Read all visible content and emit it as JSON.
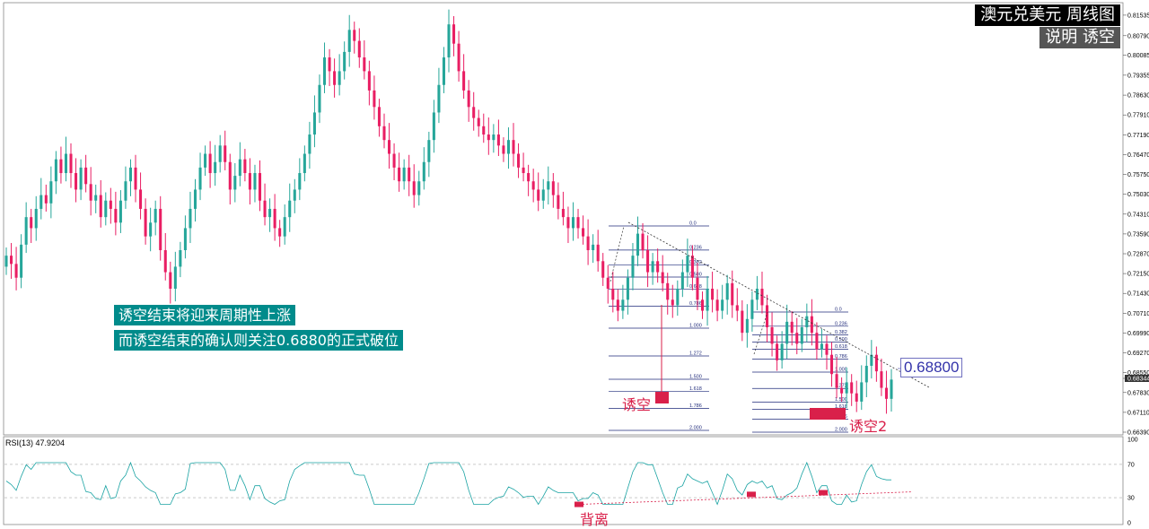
{
  "header": {
    "title": "澳元兑美元  周线图",
    "subtitle": "说明  诱空"
  },
  "annotations": {
    "note1": "诱空结束将迎来周期性上涨",
    "note2": "而诱空结束的确认则关注0.6880的正式破位",
    "level": "0.68800",
    "trap1": "诱空",
    "trap2": "诱空2",
    "divergence": "背离"
  },
  "rsi": {
    "label": "RSI(13) 47.9204"
  },
  "colors": {
    "up": "#26a69a",
    "down": "#e91e63",
    "trap": "#d9204a",
    "fib": "#1f2a7a",
    "rsi": "#1aa3a3"
  },
  "chart_data": {
    "type": "candlestick",
    "y_ticks": [
      "0.81535",
      "0.80790",
      "0.80085",
      "0.79355",
      "0.78630",
      "0.77910",
      "0.77190",
      "0.76470",
      "0.75750",
      "0.75030",
      "0.74310",
      "0.73590",
      "0.72870",
      "0.72150",
      "0.71430",
      "0.70710",
      "0.69990",
      "0.69270",
      "0.68550",
      "0.68344",
      "0.67830",
      "0.67110",
      "0.66390"
    ],
    "current_price": "0.68344",
    "ylim": [
      0.6639,
      0.8189
    ],
    "rsi_ticks": [
      "100",
      "70",
      "30",
      "0"
    ],
    "fib_levels_1": [
      "0.0",
      "0.236",
      "0.382",
      "0.500",
      "0.618",
      "0.786",
      "1.000",
      "1.272",
      "1.500",
      "1.618",
      "1.786",
      "2.000"
    ],
    "fib_levels_2": [
      "0.0",
      "0.236",
      "0.382",
      "0.500",
      "0.618",
      "0.786",
      "1.000",
      "1.272",
      "1.500",
      "1.618",
      "1.786",
      "2.000"
    ],
    "key_level": 0.688,
    "close_path": [
      0.728,
      0.725,
      0.72,
      0.732,
      0.742,
      0.738,
      0.745,
      0.75,
      0.747,
      0.755,
      0.763,
      0.758,
      0.765,
      0.758,
      0.752,
      0.76,
      0.754,
      0.748,
      0.75,
      0.742,
      0.748,
      0.745,
      0.74,
      0.748,
      0.755,
      0.76,
      0.752,
      0.745,
      0.735,
      0.74,
      0.745,
      0.73,
      0.722,
      0.716,
      0.724,
      0.73,
      0.738,
      0.745,
      0.752,
      0.76,
      0.765,
      0.758,
      0.762,
      0.768,
      0.762,
      0.752,
      0.757,
      0.763,
      0.758,
      0.752,
      0.758,
      0.748,
      0.742,
      0.745,
      0.738,
      0.735,
      0.742,
      0.748,
      0.752,
      0.758,
      0.765,
      0.772,
      0.78,
      0.79,
      0.8,
      0.795,
      0.79,
      0.795,
      0.802,
      0.81,
      0.806,
      0.8,
      0.795,
      0.788,
      0.782,
      0.775,
      0.77,
      0.765,
      0.76,
      0.755,
      0.76,
      0.755,
      0.75,
      0.755,
      0.762,
      0.77,
      0.78,
      0.79,
      0.8,
      0.812,
      0.805,
      0.795,
      0.788,
      0.782,
      0.778,
      0.775,
      0.772,
      0.77,
      0.772,
      0.768,
      0.765,
      0.77,
      0.765,
      0.76,
      0.758,
      0.755,
      0.752,
      0.748,
      0.752,
      0.755,
      0.75,
      0.745,
      0.742,
      0.738,
      0.742,
      0.738,
      0.735,
      0.73,
      0.732,
      0.726,
      0.72,
      0.716,
      0.712,
      0.708,
      0.712,
      0.72,
      0.728,
      0.736,
      0.73,
      0.722,
      0.726,
      0.722,
      0.718,
      0.712,
      0.71,
      0.716,
      0.722,
      0.728,
      0.72,
      0.712,
      0.708,
      0.716,
      0.712,
      0.708,
      0.712,
      0.718,
      0.71,
      0.708,
      0.7,
      0.705,
      0.712,
      0.716,
      0.71,
      0.702,
      0.696,
      0.69,
      0.696,
      0.704,
      0.7,
      0.696,
      0.702,
      0.706,
      0.7,
      0.694,
      0.696,
      0.692,
      0.685,
      0.68,
      0.678,
      0.682,
      0.678,
      0.675,
      0.682,
      0.688,
      0.692,
      0.686,
      0.68,
      0.676,
      0.683
    ]
  }
}
